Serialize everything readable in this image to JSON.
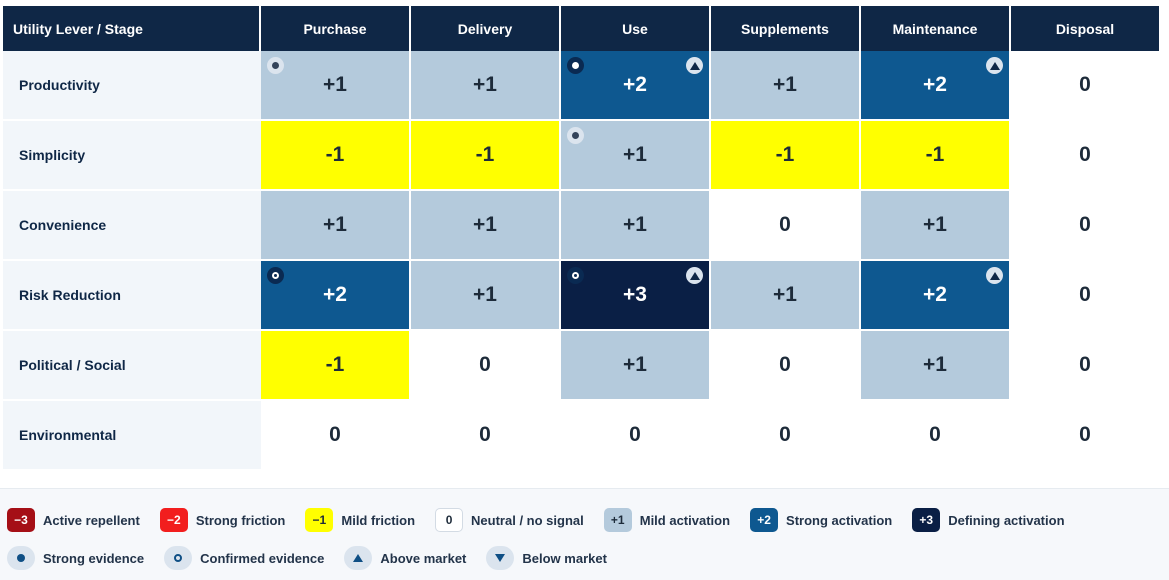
{
  "header": {
    "corner": "Utility Lever / Stage",
    "stages": [
      "Purchase",
      "Delivery",
      "Use",
      "Supplements",
      "Maintenance",
      "Disposal"
    ]
  },
  "levels": {
    "-3": {
      "bg": "#a50f16",
      "fg": "#ffffff"
    },
    "-2": {
      "bg": "#f21e1e",
      "fg": "#ffffff"
    },
    "-1": {
      "bg": "#ffff00",
      "fg": "#1d2b3a"
    },
    "0": {
      "bg": "#ffffff",
      "fg": "#1d2b3a"
    },
    "1": {
      "bg": "#b4cadc",
      "fg": "#1d2b3a"
    },
    "2": {
      "bg": "#0e5890",
      "fg": "#ffffff"
    },
    "3": {
      "bg": "#0a1f45",
      "fg": "#ffffff"
    }
  },
  "rows": [
    {
      "label": "Productivity",
      "cells": [
        {
          "value": "+1",
          "level": 1,
          "evidence": "strong"
        },
        {
          "value": "+1",
          "level": 1
        },
        {
          "value": "+2",
          "level": 2,
          "evidence": "strong",
          "market": "above"
        },
        {
          "value": "+1",
          "level": 1
        },
        {
          "value": "+2",
          "level": 2,
          "market": "above"
        },
        {
          "value": "0",
          "level": 0
        }
      ]
    },
    {
      "label": "Simplicity",
      "cells": [
        {
          "value": "-1",
          "level": -1
        },
        {
          "value": "-1",
          "level": -1
        },
        {
          "value": "+1",
          "level": 1,
          "evidence": "strong"
        },
        {
          "value": "-1",
          "level": -1
        },
        {
          "value": "-1",
          "level": -1
        },
        {
          "value": "0",
          "level": 0
        }
      ]
    },
    {
      "label": "Convenience",
      "cells": [
        {
          "value": "+1",
          "level": 1
        },
        {
          "value": "+1",
          "level": 1
        },
        {
          "value": "+1",
          "level": 1
        },
        {
          "value": "0",
          "level": 0
        },
        {
          "value": "+1",
          "level": 1
        },
        {
          "value": "0",
          "level": 0
        }
      ]
    },
    {
      "label": "Risk Reduction",
      "cells": [
        {
          "value": "+2",
          "level": 2,
          "evidence": "confirmed"
        },
        {
          "value": "+1",
          "level": 1
        },
        {
          "value": "+3",
          "level": 3,
          "evidence": "confirmed",
          "market": "above"
        },
        {
          "value": "+1",
          "level": 1
        },
        {
          "value": "+2",
          "level": 2,
          "market": "above"
        },
        {
          "value": "0",
          "level": 0
        }
      ]
    },
    {
      "label": "Political / Social",
      "cells": [
        {
          "value": "-1",
          "level": -1
        },
        {
          "value": "0",
          "level": 0
        },
        {
          "value": "+1",
          "level": 1
        },
        {
          "value": "0",
          "level": 0
        },
        {
          "value": "+1",
          "level": 1
        },
        {
          "value": "0",
          "level": 0
        }
      ]
    },
    {
      "label": "Environmental",
      "cells": [
        {
          "value": "0",
          "level": 0
        },
        {
          "value": "0",
          "level": 0
        },
        {
          "value": "0",
          "level": 0
        },
        {
          "value": "0",
          "level": 0
        },
        {
          "value": "0",
          "level": 0
        },
        {
          "value": "0",
          "level": 0
        }
      ]
    }
  ],
  "legend": {
    "scale": [
      {
        "value": "−3",
        "level": -3,
        "label": "Active repellent"
      },
      {
        "value": "−2",
        "level": -2,
        "label": "Strong friction"
      },
      {
        "value": "−1",
        "level": -1,
        "label": "Mild friction"
      },
      {
        "value": "0",
        "level": 0,
        "label": "Neutral / no signal"
      },
      {
        "value": "+1",
        "level": 1,
        "label": "Mild activation"
      },
      {
        "value": "+2",
        "level": 2,
        "label": "Strong activation"
      },
      {
        "value": "+3",
        "level": 3,
        "label": "Defining activation"
      }
    ],
    "markers": [
      {
        "icon": "strong-evidence-icon",
        "kind": "strong",
        "label": "Strong evidence"
      },
      {
        "icon": "confirmed-evidence-icon",
        "kind": "confirmed",
        "label": "Confirmed evidence"
      },
      {
        "icon": "above-market-icon",
        "kind": "above",
        "label": "Above market"
      },
      {
        "icon": "below-market-icon",
        "kind": "below",
        "label": "Below market"
      }
    ]
  }
}
